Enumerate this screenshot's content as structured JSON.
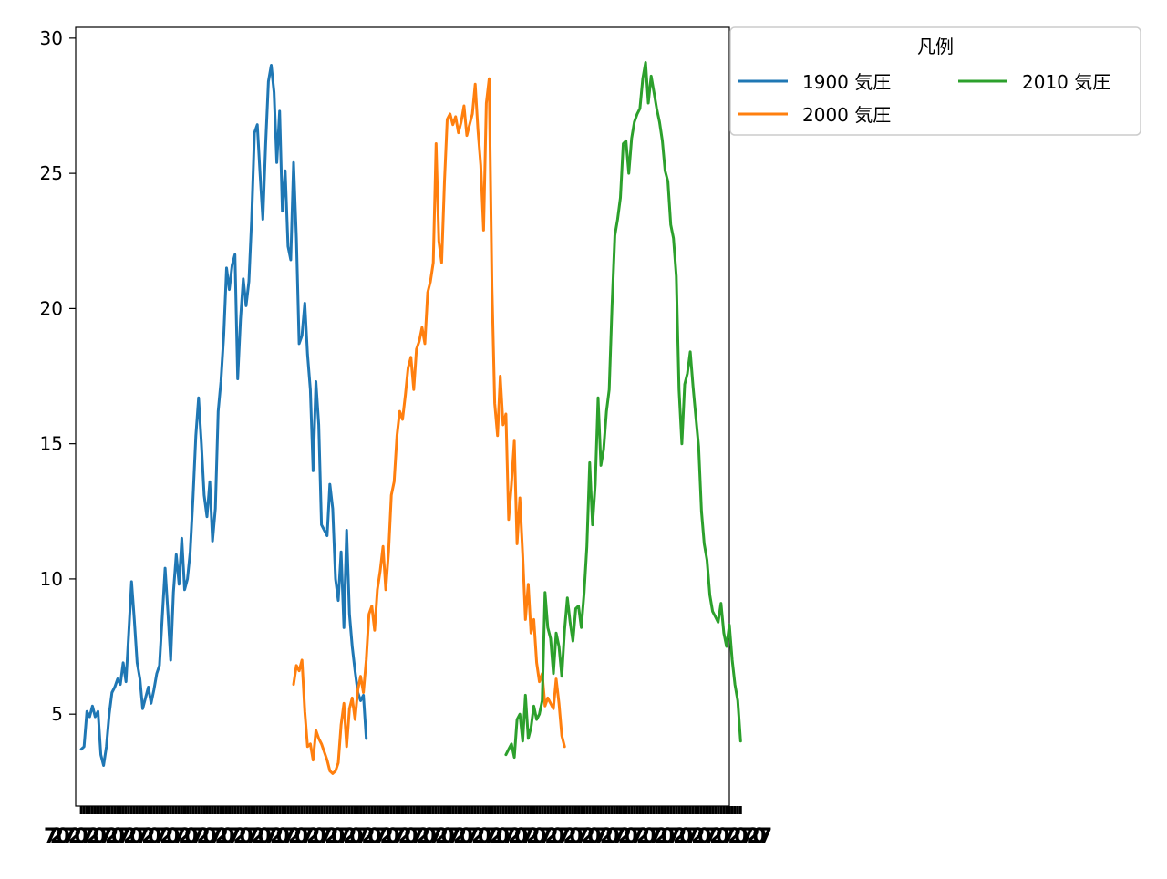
{
  "chart_data": {
    "type": "line",
    "title": "",
    "xlabel": "",
    "ylabel": "",
    "xlim": [
      -2,
      232
    ],
    "ylim": [
      1.6,
      30.4
    ],
    "yticks": [
      5,
      10,
      15,
      20,
      25,
      30
    ],
    "ytick_labels": [
      "5",
      "10",
      "15",
      "20",
      "25",
      "30"
    ],
    "grid": false,
    "legend": {
      "title": "凡例",
      "placement": "outside-top-right",
      "columns": 2
    },
    "series": [
      {
        "name": "1900 気圧",
        "color": "#1f77b4",
        "x_start": 0,
        "values": [
          3.7,
          3.8,
          5.1,
          4.9,
          5.3,
          4.9,
          5.1,
          3.5,
          3.1,
          3.8,
          5.0,
          5.8,
          6.0,
          6.3,
          6.1,
          6.9,
          6.2,
          8.0,
          9.9,
          8.5,
          6.9,
          6.3,
          5.2,
          5.6,
          6.0,
          5.4,
          5.9,
          6.5,
          6.8,
          8.6,
          10.4,
          8.8,
          7.0,
          9.5,
          10.9,
          9.8,
          11.5,
          9.6,
          10.0,
          11.0,
          13.0,
          15.3,
          16.7,
          15.0,
          13.1,
          12.3,
          13.6,
          11.4,
          12.6,
          16.2,
          17.3,
          19.0,
          21.5,
          20.7,
          21.6,
          22.0,
          17.4,
          19.6,
          21.1,
          20.1,
          21.0,
          23.3,
          26.5,
          26.8,
          25.0,
          23.3,
          26.1,
          28.4,
          29.0,
          28.0,
          25.4,
          27.3,
          23.6,
          25.1,
          22.3,
          21.8,
          25.4,
          22.6,
          18.7,
          19.0,
          20.2,
          18.3,
          17.0,
          14.0,
          17.3,
          15.7,
          12.0,
          11.8,
          11.6,
          13.5,
          12.6,
          10.0,
          9.2,
          11.0,
          8.2,
          11.8,
          8.7,
          7.5,
          6.6,
          5.8,
          5.5,
          5.7,
          4.1
        ]
      },
      {
        "name": "2000 気圧",
        "color": "#ff7f0e",
        "x_start": 76,
        "values": [
          6.1,
          6.8,
          6.6,
          7.0,
          5.1,
          3.8,
          3.9,
          3.3,
          4.4,
          4.1,
          3.9,
          3.6,
          3.3,
          2.9,
          2.8,
          2.9,
          3.2,
          4.6,
          5.4,
          3.8,
          5.2,
          5.6,
          4.8,
          5.9,
          6.4,
          5.8,
          7.0,
          8.7,
          9.0,
          8.1,
          9.6,
          10.3,
          11.2,
          9.6,
          11.0,
          13.1,
          13.6,
          15.3,
          16.2,
          15.9,
          16.8,
          17.8,
          18.2,
          17.0,
          18.5,
          18.8,
          19.3,
          18.7,
          20.6,
          21.0,
          21.7,
          26.1,
          22.5,
          21.7,
          24.7,
          27.0,
          27.2,
          26.8,
          27.1,
          26.5,
          26.9,
          27.5,
          26.4,
          26.8,
          27.2,
          28.3,
          26.6,
          25.3,
          22.9,
          27.6,
          28.5,
          20.8,
          16.5,
          15.3,
          17.5,
          15.7,
          16.1,
          12.2,
          13.5,
          15.1,
          11.3,
          13.0,
          10.9,
          8.5,
          9.8,
          8.0,
          8.5,
          6.9,
          6.2,
          6.5,
          5.3,
          5.6,
          5.4,
          5.2,
          6.3,
          5.4,
          4.2,
          3.8
        ]
      },
      {
        "name": "2010 気圧",
        "color": "#2ca02c",
        "x_start": 152,
        "values": [
          3.5,
          3.7,
          3.9,
          3.4,
          4.8,
          5.0,
          4.0,
          5.7,
          4.1,
          4.5,
          5.3,
          4.8,
          5.0,
          5.5,
          9.5,
          8.2,
          7.8,
          6.5,
          8.0,
          7.5,
          6.4,
          8.1,
          9.3,
          8.4,
          7.7,
          8.9,
          9.0,
          8.2,
          9.5,
          11.2,
          14.3,
          12.0,
          13.5,
          16.7,
          14.2,
          14.8,
          16.2,
          17.0,
          20.1,
          22.7,
          23.3,
          24.1,
          26.1,
          26.2,
          25.0,
          26.3,
          26.9,
          27.2,
          27.4,
          28.5,
          29.1,
          27.6,
          28.6,
          28.0,
          27.4,
          26.9,
          26.2,
          25.1,
          24.7,
          23.1,
          22.6,
          21.2,
          17.0,
          15.0,
          17.2,
          17.6,
          18.4,
          17.1,
          16.0,
          14.9,
          12.5,
          11.3,
          10.7,
          9.4,
          8.8,
          8.6,
          8.4,
          9.1,
          8.0,
          7.5,
          8.3,
          7.0,
          6.1,
          5.5,
          4.0
        ]
      }
    ],
    "x_tick_labels_shown": "dense overlapping tick labels along x-axis (unreadable)"
  }
}
